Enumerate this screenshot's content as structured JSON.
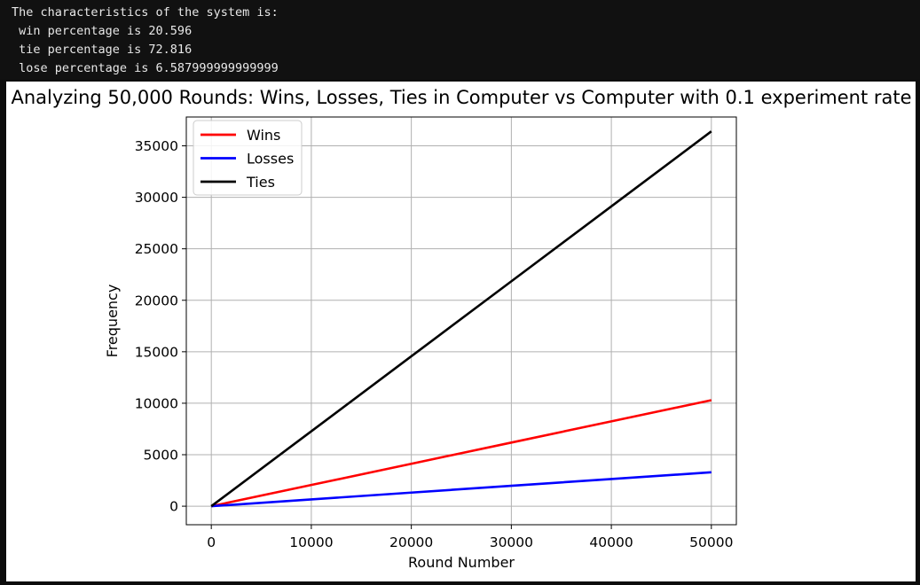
{
  "console": {
    "lines": [
      "The characteristics of the system is:",
      " win percentage is 20.596",
      " tie percentage is 72.816",
      " lose percentage is 6.587999999999999"
    ],
    "background": "#111111",
    "text_color": "#e8e8e8"
  },
  "chart_data": {
    "type": "line",
    "title": "Analyzing 50,000 Rounds: Wins, Losses, Ties in Computer vs Computer with 0.1 experiment rate",
    "xlabel": "Round Number",
    "ylabel": "Frequency",
    "xlim": [
      -2500,
      52500
    ],
    "ylim": [
      -1800,
      37800
    ],
    "xticks": [
      0,
      10000,
      20000,
      30000,
      40000,
      50000
    ],
    "yticks": [
      0,
      5000,
      10000,
      15000,
      20000,
      25000,
      30000,
      35000
    ],
    "grid": true,
    "legend_position": "top-left",
    "series": [
      {
        "name": "Wins",
        "color": "#ff0000",
        "x": [
          0,
          10000,
          20000,
          30000,
          40000,
          50000
        ],
        "values": [
          0,
          2060,
          4120,
          6180,
          8240,
          10298
        ]
      },
      {
        "name": "Losses",
        "color": "#0000ff",
        "x": [
          0,
          10000,
          20000,
          30000,
          40000,
          50000
        ],
        "values": [
          0,
          660,
          1320,
          1980,
          2640,
          3294
        ]
      },
      {
        "name": "Ties",
        "color": "#000000",
        "x": [
          0,
          10000,
          20000,
          30000,
          40000,
          50000
        ],
        "values": [
          0,
          7280,
          14560,
          21840,
          29120,
          36408
        ]
      }
    ]
  }
}
